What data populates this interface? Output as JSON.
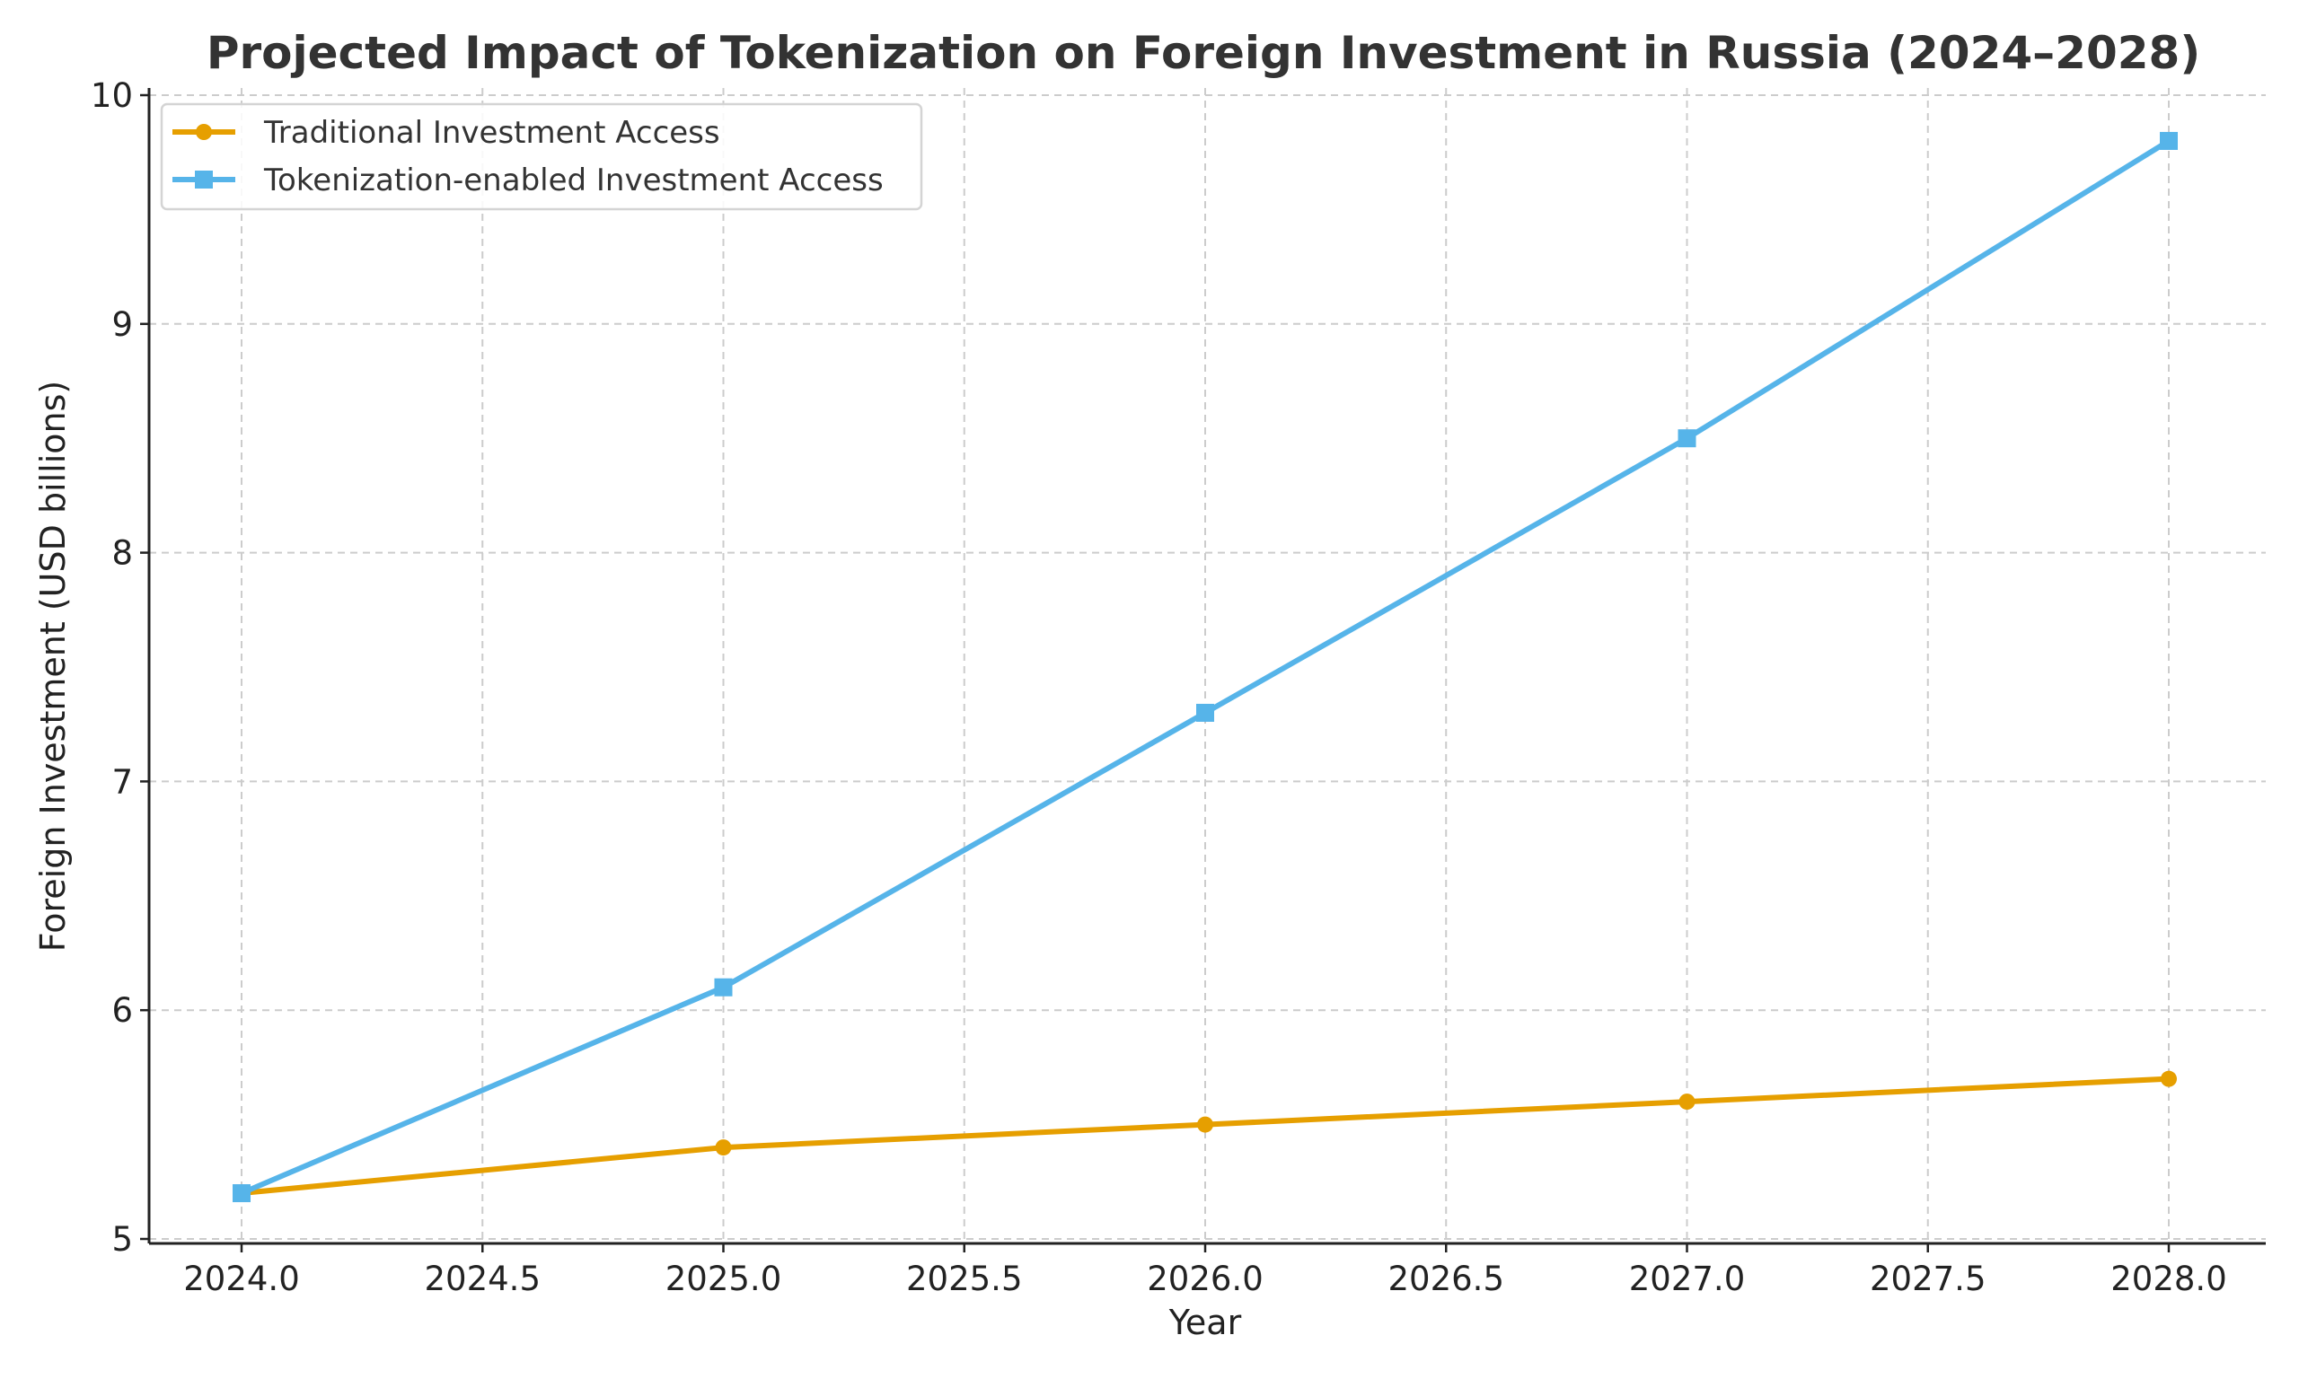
{
  "chart_data": {
    "type": "line",
    "title": "Projected Impact of Tokenization on Foreign Investment in Russia (2024–2028)",
    "xlabel": "Year",
    "ylabel": "Foreign Investment (USD billions)",
    "x": [
      2024,
      2025,
      2026,
      2027,
      2028
    ],
    "xlim": [
      2023.8,
      2028.2
    ],
    "ylim": [
      4.98,
      10.02
    ],
    "xticks": [
      "2024.0",
      "2024.5",
      "2025.0",
      "2025.5",
      "2026.0",
      "2026.5",
      "2027.0",
      "2027.5",
      "2028.0"
    ],
    "yticks": [
      "5",
      "6",
      "7",
      "8",
      "9",
      "10"
    ],
    "grid": true,
    "legend_placement": "top-left",
    "series": [
      {
        "name": "Traditional Investment Access",
        "values": [
          5.2,
          5.4,
          5.5,
          5.6,
          5.7
        ],
        "color": "#E69F00",
        "marker": "circle"
      },
      {
        "name": "Tokenization-enabled Investment Access",
        "values": [
          5.2,
          6.1,
          7.3,
          8.5,
          9.8
        ],
        "color": "#56B4E9",
        "marker": "square"
      }
    ]
  }
}
